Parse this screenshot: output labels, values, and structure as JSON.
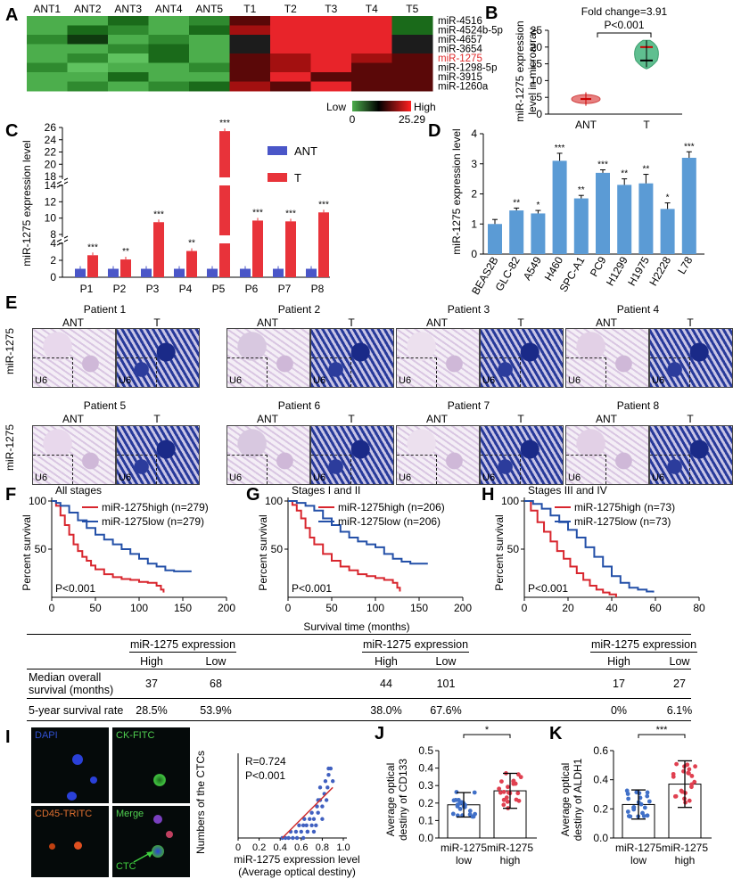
{
  "panels": {
    "A": {
      "label": "A",
      "columns": [
        "ANT1",
        "ANT2",
        "ANT3",
        "ANT4",
        "ANT5",
        "T1",
        "T2",
        "T3",
        "T4",
        "T5"
      ],
      "rows": [
        "miR-4516",
        "miR-4524b-5p",
        "miR-4657",
        "miR-3654",
        "miR-1275",
        "miR-1298-5p",
        "miR-3915",
        "miR-1260a"
      ],
      "highlight_row": "miR-1275",
      "highlight_color": "#e0292a",
      "legend": {
        "low_label": "Low",
        "high_label": "High",
        "min": "0",
        "max": "25.29"
      }
    },
    "B": {
      "label": "B",
      "title": "Fold change=3.91",
      "pvalue": "P<0.001",
      "ylabel_line1": "miR-1275 expression",
      "ylabel_line2": "level in microarray"
    },
    "C": {
      "label": "C"
    },
    "D": {
      "label": "D"
    },
    "E": {
      "label": "E",
      "row_label": "miR-1275",
      "patients": [
        "Patient 1",
        "Patient 2",
        "Patient 3",
        "Patient 4",
        "Patient 5",
        "Patient 6",
        "Patient 7",
        "Patient 8"
      ],
      "sub_ant": "ANT",
      "sub_t": "T",
      "inset_label": "U6"
    },
    "F": {
      "label": "F",
      "title": "All stages",
      "legend_high": "miR-1275high (n=279)",
      "legend_low": "miR-1275low (n=279)",
      "pvalue": "P<0.001"
    },
    "G": {
      "label": "G",
      "title": "Stages I and II",
      "legend_high": "miR-1275high (n=206)",
      "legend_low": "miR-1275low (n=206)",
      "pvalue": "P<0.001"
    },
    "H": {
      "label": "H",
      "title": "Stages III and IV",
      "legend_high": "miR-1275high (n=73)",
      "legend_low": "miR-1275low (n=73)",
      "pvalue": "P<0.001"
    },
    "I": {
      "label": "I",
      "images": [
        "DAPI",
        "CK-FITC",
        "CD45-TRITC",
        "Merge"
      ],
      "ctc_label": "CTC",
      "stats_r": "R=0.724",
      "stats_p": "P<0.001",
      "ylabel": "Numbers of the CTCs",
      "xlabel_line1": "miR-1275 expression level",
      "xlabel_line2": "(Average optical destiny)"
    },
    "J": {
      "label": "J",
      "ylabel_line1": "Average optical",
      "ylabel_line2": "destiny of CD133",
      "sig": "*",
      "groups": [
        "miR-1275\nlow",
        "miR-1275\nhigh"
      ]
    },
    "K": {
      "label": "K",
      "ylabel_line1": "Average optical",
      "ylabel_line2": "destiny of ALDH1",
      "sig": "***"
    }
  },
  "survival_xlabel": "Survival time (months)",
  "survival_ylabel": "Percent survival",
  "table": {
    "group_header": "miR-1275 expression",
    "high": "High",
    "low": "Low",
    "row1_label_line1": "Median overall",
    "row1_label_line2": "survival (months)",
    "row2_label": "5-year survival rate",
    "values": [
      {
        "median_high": "37",
        "median_low": "68",
        "rate_high": "28.5%",
        "rate_low": "53.9%"
      },
      {
        "median_high": "44",
        "median_low": "101",
        "rate_high": "38.0%",
        "rate_low": "67.6%"
      },
      {
        "median_high": "17",
        "median_low": "27",
        "rate_high": "0%",
        "rate_low": "6.1%"
      }
    ]
  },
  "colors": {
    "ant_blue": "#4a56c8",
    "t_red": "#e8333a",
    "cell_blue": "#5b9bd5",
    "heat_red": "#e8242a",
    "heat_green": "#4cae4c",
    "surv_red": "#d8262e",
    "surv_blue": "#2450a8"
  },
  "chart_data": [
    {
      "id": "B",
      "type": "violin",
      "categories": [
        "ANT",
        "T"
      ],
      "medians": [
        4.5,
        17
      ],
      "yticks": [
        0,
        5,
        10,
        15,
        20,
        25
      ],
      "ylim": [
        0,
        25
      ]
    },
    {
      "id": "C",
      "type": "bar",
      "title": "",
      "ylabel": "miR-1275 expression level",
      "categories": [
        "P1",
        "P2",
        "P3",
        "P4",
        "P5",
        "P6",
        "P7",
        "P8"
      ],
      "series": [
        {
          "name": "ANT",
          "values": [
            1,
            1,
            1,
            1,
            1,
            1,
            1,
            1
          ]
        },
        {
          "name": "T",
          "values": [
            2.6,
            2.1,
            9.5,
            3.1,
            25.4,
            9.7,
            9.6,
            10.7
          ]
        }
      ],
      "significance": [
        "***",
        "**",
        "***",
        "**",
        "***",
        "***",
        "***",
        "***"
      ],
      "yticks": [
        "0",
        "2",
        "4",
        "6",
        "8",
        "10",
        "12",
        "14",
        "16",
        "18",
        "20",
        "22",
        "24",
        "26"
      ],
      "axis_breaks": [
        [
          4,
          8
        ],
        [
          14,
          18
        ]
      ]
    },
    {
      "id": "D",
      "type": "bar",
      "ylabel": "miR-1275 expression level",
      "categories": [
        "BEAS2B",
        "GLC-82",
        "A549",
        "H460",
        "SPC-A1",
        "PC9",
        "H1299",
        "H1975",
        "H2228",
        "L78"
      ],
      "values": [
        1.0,
        1.45,
        1.35,
        3.1,
        1.85,
        2.7,
        2.3,
        2.35,
        1.5,
        3.2
      ],
      "errors": [
        0.15,
        0.08,
        0.1,
        0.25,
        0.1,
        0.1,
        0.2,
        0.3,
        0.2,
        0.2
      ],
      "significance": [
        "",
        "**",
        "*",
        "***",
        "**",
        "***",
        "**",
        "**",
        "*",
        "***"
      ],
      "yticks": [
        "0",
        "1",
        "2",
        "3",
        "4"
      ],
      "ylim": [
        0,
        4
      ]
    },
    {
      "id": "F",
      "type": "line",
      "xlabel": "",
      "ylabel": "Percent survival",
      "xlim": [
        0,
        200
      ],
      "ylim": [
        0,
        100
      ],
      "xticks": [
        "0",
        "50",
        "100",
        "150",
        "200"
      ],
      "yticks": [
        "50",
        "100"
      ],
      "series": [
        {
          "name": "miR-1275high",
          "x": [
            0,
            5,
            10,
            15,
            20,
            25,
            30,
            35,
            40,
            45,
            50,
            60,
            70,
            80,
            90,
            100,
            110,
            120,
            125,
            128
          ],
          "y": [
            100,
            95,
            85,
            75,
            65,
            55,
            48,
            42,
            38,
            33,
            29,
            24,
            21,
            19,
            18,
            16,
            15,
            12,
            8,
            5
          ]
        },
        {
          "name": "miR-1275low",
          "x": [
            0,
            5,
            10,
            20,
            30,
            40,
            50,
            60,
            70,
            80,
            90,
            100,
            110,
            120,
            130,
            140,
            150,
            160
          ],
          "y": [
            100,
            98,
            95,
            88,
            80,
            72,
            65,
            60,
            55,
            50,
            45,
            40,
            35,
            32,
            28,
            27,
            27,
            27
          ]
        }
      ]
    },
    {
      "id": "G",
      "type": "line",
      "ylabel": "Percent survival",
      "xlim": [
        0,
        200
      ],
      "ylim": [
        0,
        100
      ],
      "xticks": [
        "0",
        "50",
        "100",
        "150",
        "200"
      ],
      "yticks": [
        "50",
        "100"
      ],
      "series": [
        {
          "name": "miR-1275high",
          "x": [
            0,
            5,
            10,
            15,
            20,
            25,
            30,
            40,
            50,
            60,
            70,
            80,
            90,
            100,
            110,
            120,
            125,
            128
          ],
          "y": [
            100,
            96,
            90,
            82,
            72,
            62,
            55,
            45,
            38,
            32,
            28,
            24,
            22,
            20,
            18,
            15,
            10,
            6
          ]
        },
        {
          "name": "miR-1275low",
          "x": [
            0,
            10,
            20,
            30,
            40,
            50,
            60,
            70,
            80,
            90,
            100,
            110,
            120,
            130,
            140,
            150,
            160
          ],
          "y": [
            100,
            98,
            95,
            90,
            82,
            75,
            68,
            62,
            58,
            55,
            52,
            45,
            40,
            37,
            35,
            35,
            35
          ]
        }
      ]
    },
    {
      "id": "H",
      "type": "line",
      "ylabel": "Percent survival",
      "xlim": [
        0,
        80
      ],
      "ylim": [
        0,
        100
      ],
      "xticks": [
        "0",
        "20",
        "40",
        "60",
        "80"
      ],
      "yticks": [
        "50",
        "100"
      ],
      "series": [
        {
          "name": "miR-1275high",
          "x": [
            0,
            3,
            6,
            9,
            12,
            15,
            18,
            21,
            24,
            27,
            30,
            33,
            36,
            39,
            42
          ],
          "y": [
            100,
            90,
            78,
            68,
            58,
            48,
            40,
            32,
            25,
            18,
            12,
            8,
            5,
            3,
            0
          ]
        },
        {
          "name": "miR-1275low",
          "x": [
            0,
            4,
            8,
            12,
            16,
            20,
            24,
            28,
            32,
            36,
            40,
            44,
            48,
            52,
            56,
            59
          ],
          "y": [
            100,
            97,
            92,
            85,
            78,
            70,
            62,
            52,
            42,
            32,
            22,
            15,
            10,
            8,
            6,
            5
          ]
        }
      ]
    },
    {
      "id": "I",
      "type": "scatter",
      "xlabel": "miR-1275 expression level (Average optical destiny)",
      "ylabel": "Numbers of the CTCs",
      "xticks": [
        "0",
        "0.2",
        "0.4",
        "0.6",
        "0.8",
        "1.0"
      ],
      "xlim": [
        0,
        1
      ],
      "ylim": [
        0,
        12
      ],
      "x": [
        0.42,
        0.45,
        0.48,
        0.5,
        0.52,
        0.55,
        0.56,
        0.58,
        0.6,
        0.62,
        0.63,
        0.65,
        0.66,
        0.68,
        0.7,
        0.7,
        0.72,
        0.74,
        0.75,
        0.76,
        0.78,
        0.8,
        0.8,
        0.82,
        0.84,
        0.85,
        0.86,
        0.88,
        0.9,
        0.62,
        0.66,
        0.72,
        0.78,
        0.86,
        0.83,
        0.76
      ],
      "y": [
        0,
        0,
        0,
        1,
        0,
        1,
        0,
        2,
        1,
        2,
        3,
        2,
        1,
        3,
        4,
        2,
        3,
        2,
        5,
        4,
        6,
        5,
        3,
        7,
        6,
        8,
        10,
        11,
        9,
        0,
        1,
        1,
        8,
        11,
        9,
        6
      ],
      "fit": {
        "x": [
          0.42,
          0.9
        ],
        "y": [
          0,
          8
        ]
      }
    },
    {
      "id": "J",
      "type": "bar",
      "categories": [
        "miR-1275 low",
        "miR-1275 high"
      ],
      "values": [
        0.19,
        0.27
      ],
      "errors": [
        0.07,
        0.1
      ],
      "ylim": [
        0,
        0.5
      ],
      "yticks": [
        "0.0",
        "0.1",
        "0.2",
        "0.3",
        "0.4",
        "0.5"
      ]
    },
    {
      "id": "K",
      "type": "bar",
      "categories": [
        "miR-1275 low",
        "miR-1275 high"
      ],
      "values": [
        0.23,
        0.37
      ],
      "errors": [
        0.1,
        0.16
      ],
      "ylim": [
        0,
        0.6
      ],
      "yticks": [
        "0.0",
        "0.2",
        "0.4",
        "0.6"
      ]
    }
  ]
}
